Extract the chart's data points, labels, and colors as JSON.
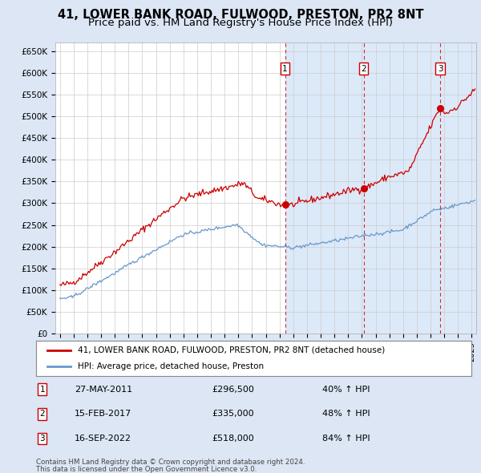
{
  "title": "41, LOWER BANK ROAD, FULWOOD, PRESTON, PR2 8NT",
  "subtitle": "Price paid vs. HM Land Registry's House Price Index (HPI)",
  "title_fontsize": 10.5,
  "subtitle_fontsize": 9.5,
  "sale_details": [
    {
      "num": "1",
      "date": "27-MAY-2011",
      "price": "£296,500",
      "pct": "40% ↑ HPI"
    },
    {
      "num": "2",
      "date": "15-FEB-2017",
      "price": "£335,000",
      "pct": "48% ↑ HPI"
    },
    {
      "num": "3",
      "date": "16-SEP-2022",
      "price": "£518,000",
      "pct": "84% ↑ HPI"
    }
  ],
  "legend1": "41, LOWER BANK ROAD, FULWOOD, PRESTON, PR2 8NT (detached house)",
  "legend2": "HPI: Average price, detached house, Preston",
  "footer1": "Contains HM Land Registry data © Crown copyright and database right 2024.",
  "footer2": "This data is licensed under the Open Government Licence v3.0.",
  "price_line_color": "#cc0000",
  "hpi_line_color": "#6699cc",
  "sale_marker_color": "#cc0000",
  "vline_color": "#cc0000",
  "shade_color": "#dce9f8",
  "ylabel_ticks": [
    "£0",
    "£50K",
    "£100K",
    "£150K",
    "£200K",
    "£250K",
    "£300K",
    "£350K",
    "£400K",
    "£450K",
    "£500K",
    "£550K",
    "£600K",
    "£650K"
  ],
  "ytick_values": [
    0,
    50000,
    100000,
    150000,
    200000,
    250000,
    300000,
    350000,
    400000,
    450000,
    500000,
    550000,
    600000,
    650000
  ],
  "ylim": [
    0,
    670000
  ],
  "background_color": "#dce6f5",
  "plot_bg_color": "#ffffff",
  "grid_color": "#cccccc"
}
